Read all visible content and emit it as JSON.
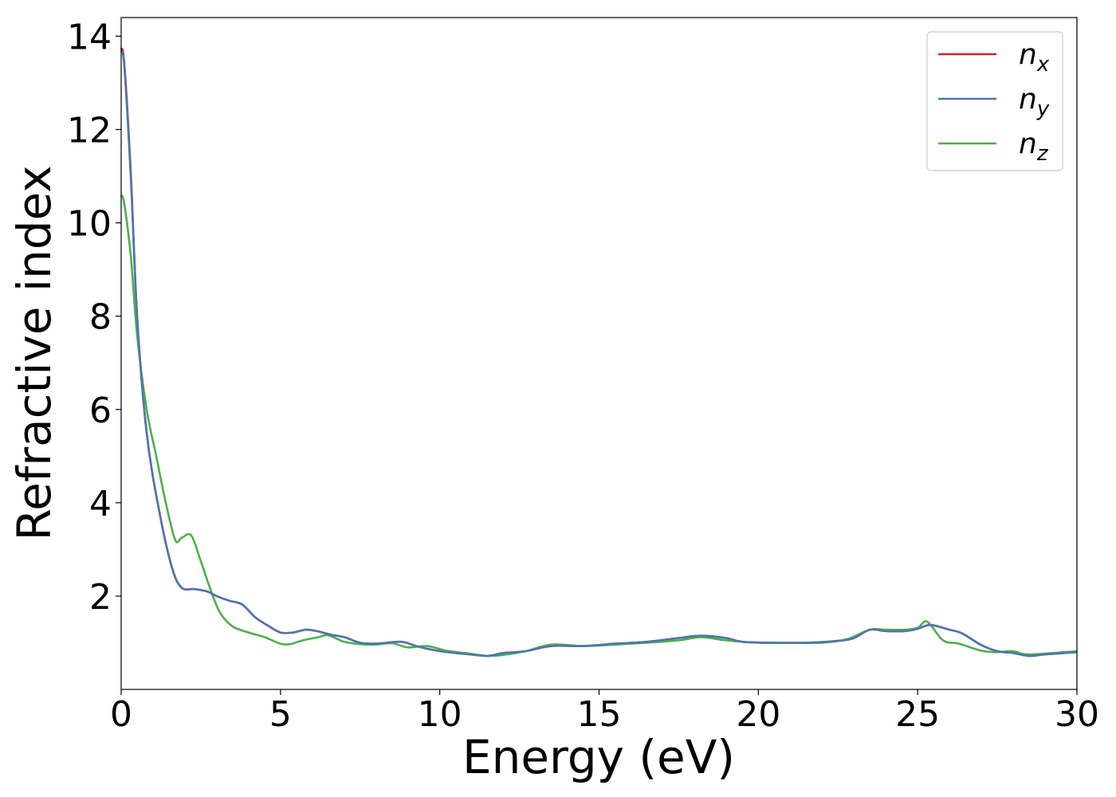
{
  "chart_data": {
    "type": "line",
    "title": "",
    "xlabel": "Energy (eV)",
    "ylabel": "Refractive index",
    "xlim": [
      0,
      30
    ],
    "ylim": [
      0,
      14.4
    ],
    "xticks": [
      0,
      5,
      10,
      15,
      20,
      25,
      30
    ],
    "yticks": [
      2,
      4,
      6,
      8,
      10,
      12,
      14
    ],
    "grid": false,
    "legend_position": "top-right",
    "series": [
      {
        "name": "n_x",
        "label_base": "n",
        "label_sub": "x",
        "color": "#e41a1c",
        "x": [
          0,
          0.1,
          0.3,
          0.5,
          0.8,
          1.2,
          1.6,
          1.9,
          2.3,
          2.7,
          3.0,
          3.4,
          3.8,
          4.2,
          4.6,
          5.0,
          5.4,
          5.8,
          6.2,
          6.6,
          7.0,
          7.5,
          8.0,
          8.8,
          9.3,
          10.0,
          10.8,
          11.5,
          12.0,
          12.7,
          13.5,
          14.5,
          15.5,
          16.5,
          17.5,
          18.2,
          19.0,
          19.5,
          20.5,
          21.5,
          22.5,
          23.0,
          23.5,
          24.0,
          24.6,
          25.0,
          25.4,
          26.0,
          26.4,
          27.0,
          27.5,
          28.0,
          28.5,
          29.0,
          30.0
        ],
        "y": [
          13.75,
          13.4,
          11.1,
          8.0,
          5.5,
          3.8,
          2.6,
          2.18,
          2.15,
          2.1,
          2.0,
          1.9,
          1.82,
          1.55,
          1.37,
          1.22,
          1.22,
          1.28,
          1.24,
          1.17,
          1.12,
          1.0,
          0.98,
          1.02,
          0.92,
          0.82,
          0.76,
          0.72,
          0.78,
          0.82,
          0.93,
          0.93,
          0.98,
          1.02,
          1.1,
          1.15,
          1.1,
          1.02,
          1.0,
          1.0,
          1.04,
          1.1,
          1.28,
          1.25,
          1.25,
          1.3,
          1.38,
          1.28,
          1.2,
          0.95,
          0.82,
          0.78,
          0.72,
          0.75,
          0.8
        ]
      },
      {
        "name": "n_y",
        "label_base": "n",
        "label_sub": "y",
        "color": "#4a77b0",
        "x": [
          0,
          0.1,
          0.3,
          0.5,
          0.8,
          1.2,
          1.6,
          1.9,
          2.3,
          2.7,
          3.0,
          3.4,
          3.8,
          4.2,
          4.6,
          5.0,
          5.4,
          5.8,
          6.2,
          6.6,
          7.0,
          7.5,
          8.0,
          8.8,
          9.3,
          10.0,
          10.8,
          11.5,
          12.0,
          12.7,
          13.5,
          14.5,
          15.5,
          16.5,
          17.5,
          18.2,
          19.0,
          19.5,
          20.5,
          21.5,
          22.5,
          23.0,
          23.5,
          24.0,
          24.6,
          25.0,
          25.4,
          26.0,
          26.4,
          27.0,
          27.5,
          28.0,
          28.5,
          29.0,
          30.0
        ],
        "y": [
          13.7,
          13.35,
          11.0,
          8.0,
          5.5,
          3.8,
          2.6,
          2.18,
          2.15,
          2.1,
          2.0,
          1.9,
          1.82,
          1.55,
          1.37,
          1.22,
          1.22,
          1.28,
          1.24,
          1.17,
          1.12,
          1.0,
          0.98,
          1.02,
          0.92,
          0.82,
          0.76,
          0.72,
          0.78,
          0.82,
          0.93,
          0.93,
          0.98,
          1.02,
          1.1,
          1.15,
          1.1,
          1.02,
          1.0,
          1.0,
          1.04,
          1.1,
          1.28,
          1.25,
          1.25,
          1.3,
          1.38,
          1.28,
          1.2,
          0.95,
          0.82,
          0.78,
          0.72,
          0.75,
          0.8
        ]
      },
      {
        "name": "n_z",
        "label_base": "n",
        "label_sub": "z",
        "color": "#4daf4a",
        "x": [
          0,
          0.1,
          0.3,
          0.5,
          0.8,
          1.1,
          1.4,
          1.7,
          1.9,
          2.2,
          2.5,
          2.8,
          3.1,
          3.5,
          4.0,
          4.5,
          5.0,
          5.3,
          5.7,
          6.2,
          6.5,
          7.0,
          7.5,
          8.0,
          8.5,
          9.0,
          9.6,
          10.2,
          10.8,
          11.5,
          12.0,
          12.7,
          13.5,
          14.5,
          15.5,
          16.5,
          17.5,
          18.2,
          19.0,
          20.0,
          21.0,
          22.0,
          22.8,
          23.5,
          24.0,
          24.6,
          25.0,
          25.3,
          25.8,
          26.3,
          27.0,
          27.5,
          28.0,
          28.5,
          30.0
        ],
        "y": [
          10.6,
          10.4,
          9.3,
          7.6,
          6.0,
          5.0,
          4.0,
          3.2,
          3.25,
          3.3,
          2.75,
          2.15,
          1.65,
          1.35,
          1.22,
          1.12,
          0.98,
          0.97,
          1.05,
          1.12,
          1.16,
          1.02,
          0.97,
          0.96,
          0.99,
          0.9,
          0.93,
          0.83,
          0.78,
          0.72,
          0.74,
          0.82,
          0.96,
          0.93,
          0.96,
          1.0,
          1.05,
          1.12,
          1.05,
          1.0,
          1.0,
          1.0,
          1.08,
          1.28,
          1.28,
          1.28,
          1.32,
          1.45,
          1.05,
          0.98,
          0.83,
          0.8,
          0.82,
          0.75,
          0.82
        ]
      }
    ]
  }
}
